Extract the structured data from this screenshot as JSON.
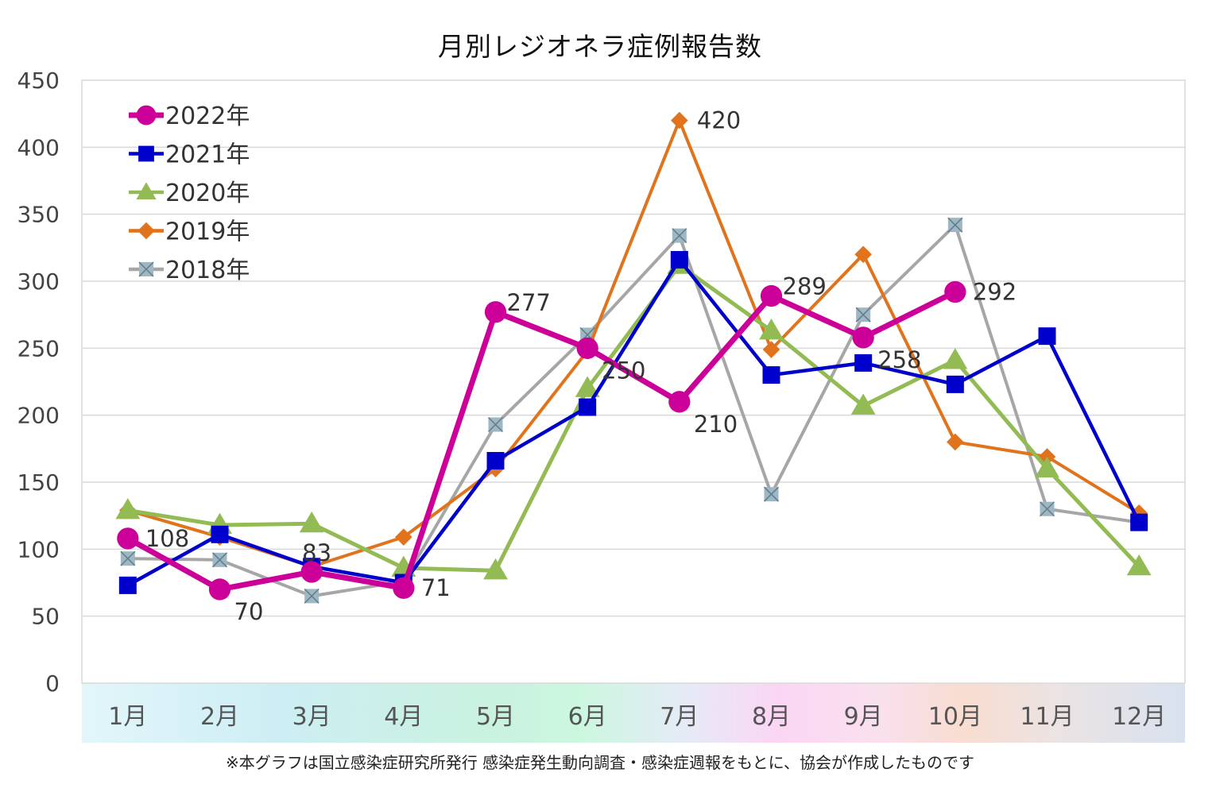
{
  "chart_data": {
    "type": "line",
    "title": "月別レジオネラ症例報告数",
    "footnote": "※本グラフは国立感染症研究所発行 感染症発生動向調査・感染症週報をもとに、協会が作成したものです",
    "categories": [
      "1月",
      "2月",
      "3月",
      "4月",
      "5月",
      "6月",
      "7月",
      "8月",
      "9月",
      "10月",
      "11月",
      "12月"
    ],
    "ylim": [
      0,
      450
    ],
    "yticks": [
      "0",
      "50",
      "100",
      "150",
      "200",
      "250",
      "300",
      "350",
      "400",
      "450"
    ],
    "grid": true,
    "legend_position": "top-left",
    "series": [
      {
        "name": "2022年",
        "color": "#cc0099",
        "marker": "circle",
        "values": [
          108,
          70,
          83,
          71,
          277,
          250,
          210,
          289,
          258,
          292,
          null,
          null
        ]
      },
      {
        "name": "2021年",
        "color": "#0000cc",
        "marker": "square",
        "values": [
          73,
          111,
          87,
          75,
          166,
          206,
          316,
          230,
          239,
          223,
          259,
          120
        ]
      },
      {
        "name": "2020年",
        "color": "#92bb54",
        "marker": "triangle",
        "values": [
          129,
          118,
          119,
          86,
          84,
          220,
          312,
          263,
          207,
          241,
          160,
          87
        ]
      },
      {
        "name": "2019年",
        "color": "#e0731b",
        "marker": "diamond",
        "values": [
          129,
          109,
          87,
          109,
          160,
          248,
          420,
          249,
          320,
          180,
          169,
          127
        ]
      },
      {
        "name": "2018年",
        "color": "#a6a6a6",
        "marker": "x-square",
        "values": [
          93,
          92,
          65,
          76,
          193,
          260,
          334,
          141,
          275,
          342,
          130,
          120
        ]
      }
    ],
    "data_labels": [
      {
        "text": "108",
        "series": 0,
        "index": 0,
        "pos": "right"
      },
      {
        "text": "70",
        "series": 0,
        "index": 1,
        "pos": "below-right"
      },
      {
        "text": "83",
        "series": 0,
        "index": 2,
        "pos": "above"
      },
      {
        "text": "71",
        "series": 0,
        "index": 3,
        "pos": "right"
      },
      {
        "text": "277",
        "series": 0,
        "index": 4,
        "pos": "above-right"
      },
      {
        "text": "250",
        "series": 0,
        "index": 5,
        "pos": "below-right"
      },
      {
        "text": "210",
        "series": 0,
        "index": 6,
        "pos": "below-right"
      },
      {
        "text": "289",
        "series": 0,
        "index": 7,
        "pos": "above-right"
      },
      {
        "text": "258",
        "series": 0,
        "index": 8,
        "pos": "below-right"
      },
      {
        "text": "292",
        "series": 0,
        "index": 9,
        "pos": "right"
      },
      {
        "text": "420",
        "series": 3,
        "index": 6,
        "pos": "right"
      }
    ]
  }
}
